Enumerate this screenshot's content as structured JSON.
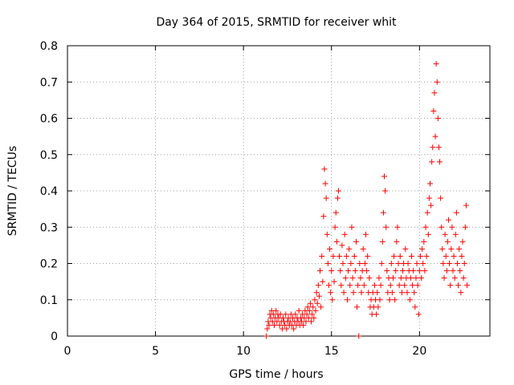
{
  "chart_data": {
    "type": "scatter",
    "title": "Day 364 of 2015, SRMTID for receiver whit",
    "xlabel": "GPS time / hours",
    "ylabel": "SRMTID / TECUs",
    "xlim": [
      0,
      24
    ],
    "ylim": [
      0,
      0.8
    ],
    "xticks": [
      0,
      5,
      10,
      15,
      20
    ],
    "yticks": [
      0,
      0.1,
      0.2,
      0.3,
      0.4,
      0.5,
      0.6,
      0.7,
      0.8
    ],
    "xtick_labels": [
      "0",
      "5",
      "10",
      "15",
      "20"
    ],
    "ytick_labels": [
      "0",
      "0.1",
      "0.2",
      "0.3",
      "0.4",
      "0.5",
      "0.6",
      "0.7",
      "0.8"
    ],
    "grid": true,
    "marker": "+",
    "color": "#ff0000",
    "series": [
      {
        "name": "SRMTID",
        "points": [
          [
            11.3,
            0.0
          ],
          [
            11.35,
            0.02
          ],
          [
            11.4,
            0.04
          ],
          [
            11.45,
            0.03
          ],
          [
            11.5,
            0.06
          ],
          [
            11.55,
            0.05
          ],
          [
            11.6,
            0.07
          ],
          [
            11.65,
            0.04
          ],
          [
            11.7,
            0.06
          ],
          [
            11.75,
            0.03
          ],
          [
            11.8,
            0.05
          ],
          [
            11.85,
            0.07
          ],
          [
            11.9,
            0.04
          ],
          [
            11.95,
            0.06
          ],
          [
            12.0,
            0.05
          ],
          [
            12.05,
            0.03
          ],
          [
            12.1,
            0.06
          ],
          [
            12.15,
            0.04
          ],
          [
            12.2,
            0.02
          ],
          [
            12.25,
            0.05
          ],
          [
            12.3,
            0.04
          ],
          [
            12.35,
            0.03
          ],
          [
            12.4,
            0.06
          ],
          [
            12.45,
            0.02
          ],
          [
            12.5,
            0.04
          ],
          [
            12.55,
            0.05
          ],
          [
            12.6,
            0.03
          ],
          [
            12.65,
            0.04
          ],
          [
            12.7,
            0.06
          ],
          [
            12.75,
            0.03
          ],
          [
            12.8,
            0.05
          ],
          [
            12.85,
            0.02
          ],
          [
            12.9,
            0.04
          ],
          [
            12.95,
            0.06
          ],
          [
            13.0,
            0.03
          ],
          [
            13.05,
            0.05
          ],
          [
            13.1,
            0.04
          ],
          [
            13.15,
            0.07
          ],
          [
            13.2,
            0.03
          ],
          [
            13.25,
            0.05
          ],
          [
            13.3,
            0.04
          ],
          [
            13.35,
            0.06
          ],
          [
            13.4,
            0.03
          ],
          [
            13.45,
            0.05
          ],
          [
            13.5,
            0.07
          ],
          [
            13.55,
            0.04
          ],
          [
            13.6,
            0.06
          ],
          [
            13.65,
            0.08
          ],
          [
            13.7,
            0.05
          ],
          [
            13.75,
            0.07
          ],
          [
            13.8,
            0.09
          ],
          [
            13.85,
            0.04
          ],
          [
            13.9,
            0.06
          ],
          [
            13.95,
            0.08
          ],
          [
            14.0,
            0.05
          ],
          [
            14.05,
            0.1
          ],
          [
            14.1,
            0.07
          ],
          [
            14.15,
            0.12
          ],
          [
            14.2,
            0.09
          ],
          [
            14.25,
            0.14
          ],
          [
            14.3,
            0.11
          ],
          [
            14.35,
            0.18
          ],
          [
            14.4,
            0.08
          ],
          [
            14.45,
            0.22
          ],
          [
            14.5,
            0.15
          ],
          [
            14.55,
            0.33
          ],
          [
            14.6,
            0.46
          ],
          [
            14.65,
            0.42
          ],
          [
            14.7,
            0.38
          ],
          [
            14.75,
            0.28
          ],
          [
            14.8,
            0.2
          ],
          [
            14.85,
            0.14
          ],
          [
            14.9,
            0.24
          ],
          [
            14.95,
            0.12
          ],
          [
            15.0,
            0.18
          ],
          [
            15.05,
            0.1
          ],
          [
            15.1,
            0.22
          ],
          [
            15.15,
            0.15
          ],
          [
            15.2,
            0.3
          ],
          [
            15.25,
            0.34
          ],
          [
            15.3,
            0.26
          ],
          [
            15.35,
            0.38
          ],
          [
            15.4,
            0.4
          ],
          [
            15.45,
            0.22
          ],
          [
            15.5,
            0.18
          ],
          [
            15.55,
            0.14
          ],
          [
            15.6,
            0.25
          ],
          [
            15.65,
            0.2
          ],
          [
            15.7,
            0.12
          ],
          [
            15.75,
            0.28
          ],
          [
            15.8,
            0.16
          ],
          [
            15.85,
            0.22
          ],
          [
            15.9,
            0.1
          ],
          [
            15.95,
            0.18
          ],
          [
            16.0,
            0.24
          ],
          [
            16.05,
            0.14
          ],
          [
            16.1,
            0.2
          ],
          [
            16.15,
            0.3
          ],
          [
            16.2,
            0.16
          ],
          [
            16.25,
            0.12
          ],
          [
            16.3,
            0.22
          ],
          [
            16.35,
            0.18
          ],
          [
            16.4,
            0.26
          ],
          [
            16.45,
            0.08
          ],
          [
            16.5,
            0.14
          ],
          [
            16.55,
            0.0
          ],
          [
            16.6,
            0.2
          ],
          [
            16.65,
            0.16
          ],
          [
            16.7,
            0.12
          ],
          [
            16.75,
            0.18
          ],
          [
            16.8,
            0.24
          ],
          [
            16.85,
            0.14
          ],
          [
            16.9,
            0.2
          ],
          [
            16.95,
            0.28
          ],
          [
            17.0,
            0.18
          ],
          [
            17.05,
            0.22
          ],
          [
            17.1,
            0.12
          ],
          [
            17.15,
            0.16
          ],
          [
            17.2,
            0.08
          ],
          [
            17.25,
            0.1
          ],
          [
            17.3,
            0.06
          ],
          [
            17.35,
            0.12
          ],
          [
            17.4,
            0.08
          ],
          [
            17.45,
            0.14
          ],
          [
            17.5,
            0.1
          ],
          [
            17.55,
            0.06
          ],
          [
            17.6,
            0.12
          ],
          [
            17.65,
            0.08
          ],
          [
            17.7,
            0.16
          ],
          [
            17.75,
            0.1
          ],
          [
            17.8,
            0.14
          ],
          [
            17.85,
            0.2
          ],
          [
            17.9,
            0.26
          ],
          [
            17.95,
            0.34
          ],
          [
            18.0,
            0.44
          ],
          [
            18.05,
            0.4
          ],
          [
            18.1,
            0.3
          ],
          [
            18.15,
            0.18
          ],
          [
            18.2,
            0.12
          ],
          [
            18.25,
            0.16
          ],
          [
            18.3,
            0.1
          ],
          [
            18.35,
            0.14
          ],
          [
            18.4,
            0.2
          ],
          [
            18.45,
            0.12
          ],
          [
            18.5,
            0.16
          ],
          [
            18.55,
            0.22
          ],
          [
            18.6,
            0.1
          ],
          [
            18.65,
            0.18
          ],
          [
            18.7,
            0.26
          ],
          [
            18.75,
            0.3
          ],
          [
            18.8,
            0.2
          ],
          [
            18.85,
            0.14
          ],
          [
            18.9,
            0.22
          ],
          [
            18.95,
            0.16
          ],
          [
            19.0,
            0.12
          ],
          [
            19.05,
            0.18
          ],
          [
            19.1,
            0.2
          ],
          [
            19.15,
            0.14
          ],
          [
            19.2,
            0.24
          ],
          [
            19.25,
            0.16
          ],
          [
            19.3,
            0.12
          ],
          [
            19.35,
            0.2
          ],
          [
            19.4,
            0.18
          ],
          [
            19.45,
            0.1
          ],
          [
            19.5,
            0.16
          ],
          [
            19.55,
            0.22
          ],
          [
            19.6,
            0.14
          ],
          [
            19.65,
            0.18
          ],
          [
            19.7,
            0.12
          ],
          [
            19.75,
            0.08
          ],
          [
            19.8,
            0.16
          ],
          [
            19.85,
            0.2
          ],
          [
            19.9,
            0.14
          ],
          [
            19.95,
            0.06
          ],
          [
            20.0,
            0.18
          ],
          [
            20.05,
            0.22
          ],
          [
            20.1,
            0.16
          ],
          [
            20.15,
            0.24
          ],
          [
            20.2,
            0.2
          ],
          [
            20.25,
            0.26
          ],
          [
            20.3,
            0.18
          ],
          [
            20.35,
            0.3
          ],
          [
            20.4,
            0.22
          ],
          [
            20.45,
            0.34
          ],
          [
            20.5,
            0.28
          ],
          [
            20.55,
            0.38
          ],
          [
            20.6,
            0.42
          ],
          [
            20.65,
            0.36
          ],
          [
            20.7,
            0.48
          ],
          [
            20.75,
            0.52
          ],
          [
            20.8,
            0.62
          ],
          [
            20.85,
            0.67
          ],
          [
            20.9,
            0.55
          ],
          [
            20.95,
            0.75
          ],
          [
            21.0,
            0.7
          ],
          [
            21.05,
            0.6
          ],
          [
            21.1,
            0.52
          ],
          [
            21.15,
            0.48
          ],
          [
            21.2,
            0.38
          ],
          [
            21.25,
            0.3
          ],
          [
            21.3,
            0.24
          ],
          [
            21.35,
            0.2
          ],
          [
            21.4,
            0.16
          ],
          [
            21.45,
            0.28
          ],
          [
            21.5,
            0.22
          ],
          [
            21.55,
            0.18
          ],
          [
            21.6,
            0.26
          ],
          [
            21.65,
            0.32
          ],
          [
            21.7,
            0.2
          ],
          [
            21.75,
            0.14
          ],
          [
            21.8,
            0.24
          ],
          [
            21.85,
            0.3
          ],
          [
            21.9,
            0.18
          ],
          [
            21.95,
            0.22
          ],
          [
            22.0,
            0.16
          ],
          [
            22.05,
            0.28
          ],
          [
            22.1,
            0.34
          ],
          [
            22.15,
            0.2
          ],
          [
            22.2,
            0.14
          ],
          [
            22.25,
            0.24
          ],
          [
            22.3,
            0.18
          ],
          [
            22.35,
            0.12
          ],
          [
            22.4,
            0.22
          ],
          [
            22.45,
            0.26
          ],
          [
            22.5,
            0.16
          ],
          [
            22.55,
            0.2
          ],
          [
            22.6,
            0.3
          ],
          [
            22.65,
            0.36
          ],
          [
            22.7,
            0.14
          ]
        ]
      }
    ]
  }
}
